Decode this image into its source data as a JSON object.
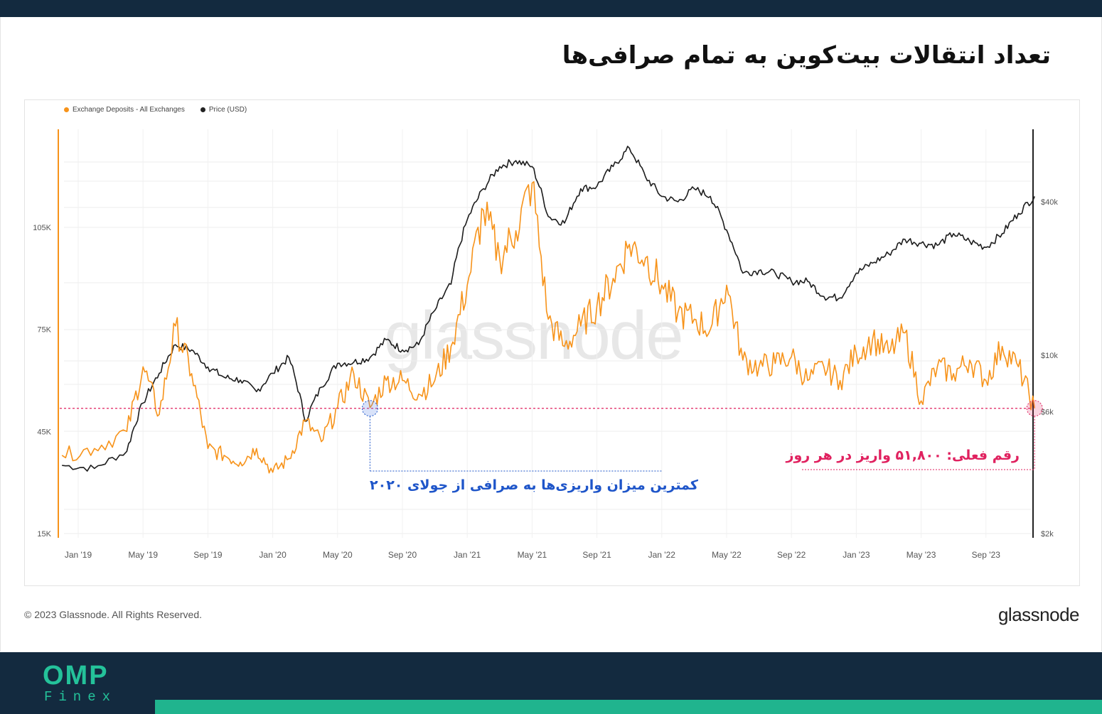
{
  "header": {
    "title": "تعداد انتقالات بیت‌کوین به تمام صرافی‌ها"
  },
  "legend": [
    {
      "label": "Exchange Deposits - All Exchanges",
      "color": "#f7931a"
    },
    {
      "label": "Price (USD)",
      "color": "#222222"
    }
  ],
  "annotations": {
    "current": "رقم فعلی: ۵۱,۸۰۰ واریز در هر روز",
    "lowest": "کمترین میزان واریزی‌ها به صرافی از جولای ۲۰۲۰"
  },
  "watermark": "glassnode",
  "footer": {
    "copyright": "© 2023 Glassnode. All Rights Reserved.",
    "brand": "glassnode",
    "logo_main": "OMP",
    "logo_sub": "Finex"
  },
  "colors": {
    "deposits": "#f7931a",
    "price": "#1c1c1c",
    "highlight": "#e0215f",
    "low_marker": "#1e55c9"
  },
  "chart_data": {
    "type": "line",
    "x_ticks": [
      "Jan '19",
      "May '19",
      "Sep '19",
      "Jan '20",
      "May '20",
      "Sep '20",
      "Jan '21",
      "May '21",
      "Sep '21",
      "Jan '22",
      "May '22",
      "Sep '22",
      "Jan '23",
      "May '23",
      "Sep '23"
    ],
    "y_left_ticks": [
      "15K",
      "45K",
      "75K",
      "105K"
    ],
    "y_left_values": [
      15000,
      45000,
      75000,
      105000
    ],
    "y_right_ticks": [
      "$2k",
      "$6k",
      "$10k",
      "$40k"
    ],
    "y_right_values": [
      2000,
      6000,
      10000,
      40000
    ],
    "y_right_scale": "log",
    "grid": true,
    "legend_position": "top-left",
    "reference_line": {
      "value": 51800,
      "label": "51,800"
    },
    "series": [
      {
        "name": "Exchange Deposits - All Exchanges",
        "axis": "left",
        "x": [
          "2018-12",
          "2019-02",
          "2019-04",
          "2019-05",
          "2019-06",
          "2019-07",
          "2019-08",
          "2019-09",
          "2019-10",
          "2019-11",
          "2019-12",
          "2020-01",
          "2020-02",
          "2020-03",
          "2020-04",
          "2020-05",
          "2020-06",
          "2020-07",
          "2020-08",
          "2020-09",
          "2020-10",
          "2020-11",
          "2020-12",
          "2021-01",
          "2021-02",
          "2021-03",
          "2021-04",
          "2021-05",
          "2021-06",
          "2021-07",
          "2021-08",
          "2021-09",
          "2021-10",
          "2021-11",
          "2021-12",
          "2022-01",
          "2022-02",
          "2022-03",
          "2022-04",
          "2022-05",
          "2022-06",
          "2022-07",
          "2022-08",
          "2022-09",
          "2022-10",
          "2022-11",
          "2022-12",
          "2023-01",
          "2023-02",
          "2023-03",
          "2023-04",
          "2023-05",
          "2023-06",
          "2023-07",
          "2023-08",
          "2023-09",
          "2023-10",
          "2023-11",
          "2023-12"
        ],
        "values": [
          38000,
          40000,
          45000,
          64000,
          50000,
          76000,
          62000,
          40000,
          38000,
          36000,
          40000,
          33000,
          37000,
          48000,
          42000,
          52000,
          62000,
          52000,
          60000,
          60000,
          56000,
          60000,
          70000,
          88000,
          110000,
          96000,
          104000,
          118000,
          78000,
          70000,
          76000,
          82000,
          90000,
          100000,
          96000,
          88000,
          80000,
          78000,
          75000,
          88000,
          66000,
          64000,
          65000,
          67000,
          60000,
          64000,
          60000,
          68000,
          72000,
          68000,
          74000,
          54000,
          64000,
          62000,
          66000,
          60000,
          70000,
          64000,
          51800
        ]
      },
      {
        "name": "Price (USD)",
        "axis": "right",
        "x": [
          "2018-12",
          "2019-02",
          "2019-04",
          "2019-05",
          "2019-06",
          "2019-07",
          "2019-08",
          "2019-09",
          "2019-10",
          "2019-11",
          "2019-12",
          "2020-01",
          "2020-02",
          "2020-03",
          "2020-04",
          "2020-05",
          "2020-06",
          "2020-07",
          "2020-08",
          "2020-09",
          "2020-10",
          "2020-11",
          "2020-12",
          "2021-01",
          "2021-02",
          "2021-03",
          "2021-04",
          "2021-05",
          "2021-06",
          "2021-07",
          "2021-08",
          "2021-09",
          "2021-10",
          "2021-11",
          "2021-12",
          "2022-01",
          "2022-02",
          "2022-03",
          "2022-04",
          "2022-05",
          "2022-06",
          "2022-07",
          "2022-08",
          "2022-09",
          "2022-10",
          "2022-11",
          "2022-12",
          "2023-01",
          "2023-02",
          "2023-03",
          "2023-04",
          "2023-05",
          "2023-06",
          "2023-07",
          "2023-08",
          "2023-09",
          "2023-10",
          "2023-11",
          "2023-12"
        ],
        "values": [
          3700,
          3600,
          4200,
          6500,
          8500,
          11000,
          10500,
          9000,
          8200,
          8000,
          7200,
          8500,
          9800,
          5500,
          7500,
          9300,
          9400,
          9800,
          11500,
          10500,
          11000,
          15000,
          19000,
          34000,
          45000,
          55000,
          58000,
          55000,
          35000,
          33000,
          45000,
          46000,
          55000,
          65000,
          50000,
          42000,
          40000,
          45000,
          42000,
          31000,
          21000,
          21500,
          21000,
          19500,
          19500,
          17000,
          16800,
          21000,
          23000,
          25000,
          28500,
          27500,
          27000,
          30000,
          28000,
          26500,
          30000,
          36000,
          42000
        ]
      }
    ]
  }
}
